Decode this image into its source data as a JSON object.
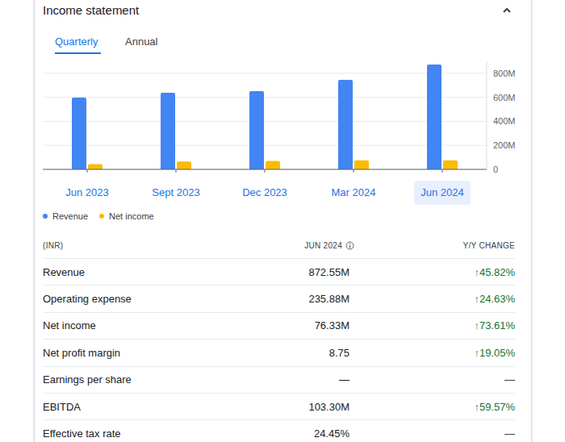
{
  "title": "Income statement",
  "tabs": [
    "Quarterly",
    "Annual"
  ],
  "chart_data": {
    "type": "bar",
    "categories": [
      "Jun 2023",
      "Sept 2023",
      "Dec 2023",
      "Mar 2024",
      "Jun 2024"
    ],
    "series": [
      {
        "name": "Revenue",
        "color": "#4285f4",
        "values": [
          598,
          638,
          651,
          745,
          872.55
        ]
      },
      {
        "name": "Net income",
        "color": "#fbbc04",
        "values": [
          44,
          66,
          70,
          75,
          76.33
        ]
      }
    ],
    "ylim": [
      0,
      900
    ],
    "yticks": [
      0,
      {
        "value": 200,
        "label": "200M"
      },
      {
        "value": 400,
        "label": "400M"
      },
      {
        "value": 600,
        "label": "600M"
      },
      {
        "value": 800,
        "label": "800M"
      }
    ],
    "grid": true
  },
  "table": {
    "header": [
      "(INR)",
      "JUN 2024",
      "Y/Y CHANGE"
    ],
    "rows": [
      [
        "Revenue",
        "872.55M",
        "↑45.82%"
      ],
      [
        "Operating expense",
        "235.88M",
        "↑24.63%"
      ],
      [
        "Net income",
        "76.33M",
        "↑73.61%"
      ],
      [
        "Net profit margin",
        "8.75",
        "↑19.05%"
      ],
      [
        "Earnings per share",
        "—",
        "—"
      ],
      [
        "EBITDA",
        "103.30M",
        "↑59.57%"
      ],
      [
        "Effective tax rate",
        "24.45%",
        "—"
      ]
    ]
  }
}
